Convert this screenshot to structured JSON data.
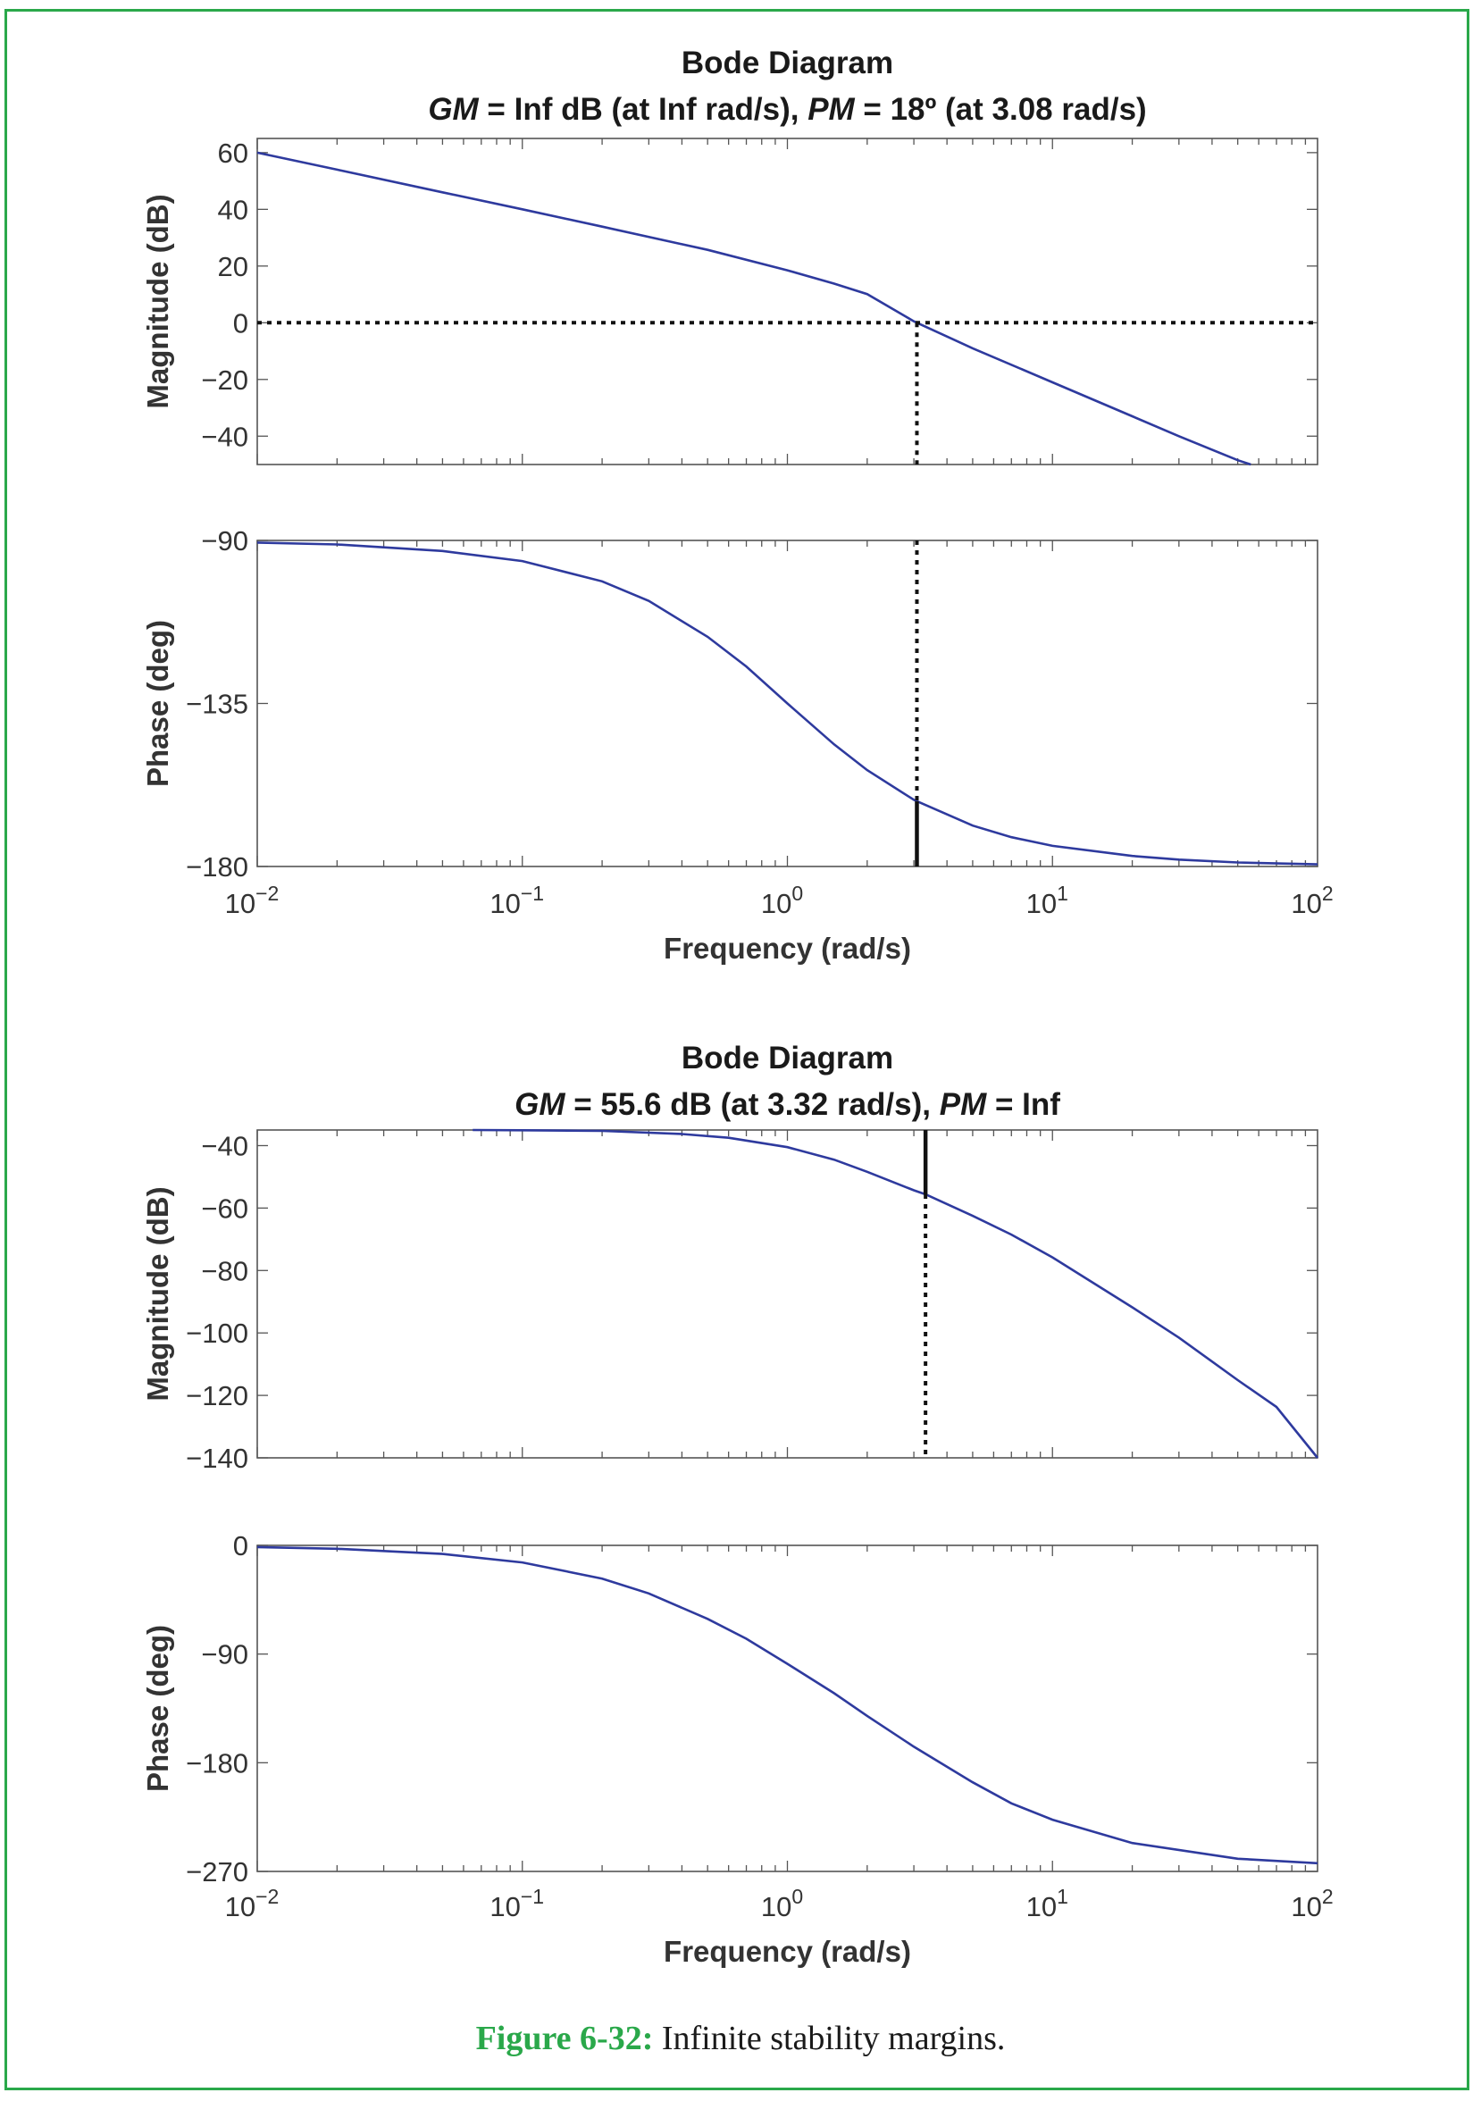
{
  "chart_data": [
    {
      "type": "line",
      "title": "Bode Diagram",
      "subtitle_parts": [
        "GM",
        " = Inf dB (at Inf rad/s), ",
        "PM",
        " = 18º (at 3.08 rad/s)"
      ],
      "xlabel": "Frequency (rad/s)",
      "x_scale": "log",
      "xlim": [
        0.01,
        100
      ],
      "x_tick_labels": [
        "10",
        "10",
        "10",
        "10",
        "10"
      ],
      "x_tick_exponents": [
        "−2",
        "−1",
        "0",
        "1",
        "2"
      ],
      "magnitude": {
        "ylabel": "Magnitude (dB)",
        "ylim": [
          -50,
          65
        ],
        "yticks": [
          60,
          40,
          20,
          0,
          -20,
          -40
        ],
        "ytick_labels": [
          "60",
          "40",
          "20",
          "0",
          "−20",
          "−40"
        ],
        "series": [
          {
            "x": [
              0.01,
              0.02,
              0.05,
              0.1,
              0.2,
              0.5,
              1,
              1.5,
              2,
              3,
              3.08,
              5,
              10,
              20,
              30,
              50,
              56
            ],
            "y": [
              60,
              54,
              46,
              40,
              33.9,
              25.7,
              18.5,
              13.8,
              10.1,
              0.5,
              0,
              -9,
              -21,
              -33,
              -40,
              -48.5,
              -50
            ]
          }
        ],
        "reference_line_y": 0,
        "margin_marker_x": 3.08
      },
      "phase": {
        "ylabel": "Phase (deg)",
        "ylim": [
          -180,
          -90
        ],
        "yticks": [
          -90,
          -135,
          -180
        ],
        "ytick_labels": [
          "−90",
          "−135",
          "−180"
        ],
        "series": [
          {
            "x": [
              0.01,
              0.02,
              0.05,
              0.1,
              0.2,
              0.3,
              0.5,
              0.7,
              1,
              1.5,
              2,
              3,
              3.08,
              5,
              7,
              10,
              20,
              30,
              50,
              100
            ],
            "y": [
              -90.6,
              -91.1,
              -92.9,
              -95.7,
              -101.3,
              -106.7,
              -116.6,
              -124.8,
              -135,
              -146.3,
              -153.4,
              -161.6,
              -162,
              -168.7,
              -171.9,
              -174.3,
              -177.1,
              -178.1,
              -178.9,
              -179.4
            ]
          }
        ],
        "margin_marker_x": 3.08,
        "margin_marker_phase": -162
      }
    },
    {
      "type": "line",
      "title": "Bode Diagram",
      "subtitle_parts": [
        "GM",
        " = 55.6 dB (at 3.32 rad/s), ",
        "PM",
        " = Inf"
      ],
      "xlabel": "Frequency (rad/s)",
      "x_scale": "log",
      "xlim": [
        0.01,
        100
      ],
      "x_tick_labels": [
        "10",
        "10",
        "10",
        "10",
        "10"
      ],
      "x_tick_exponents": [
        "−2",
        "−1",
        "0",
        "1",
        "2"
      ],
      "magnitude": {
        "ylabel": "Magnitude (dB)",
        "ylim": [
          -140,
          -35
        ],
        "yticks": [
          -40,
          -60,
          -80,
          -100,
          -120,
          -140
        ],
        "ytick_labels": [
          "−40",
          "−60",
          "−80",
          "−100",
          "−120",
          "−140"
        ],
        "series": [
          {
            "x": [
              0.065,
              0.1,
              0.2,
              0.4,
              0.6,
              1,
              1.5,
              2,
              3,
              3.32,
              5,
              7,
              10,
              20,
              30,
              50,
              70,
              100
            ],
            "y": [
              -35,
              -35.1,
              -35.3,
              -36.3,
              -37.5,
              -40.5,
              -44.5,
              -48.4,
              -54.3,
              -55.6,
              -62.5,
              -68.5,
              -75.8,
              -91.8,
              -101.5,
              -115.1,
              -123.7,
              -140
            ]
          }
        ],
        "margin_marker_x": 3.32,
        "margin_marker_y": -55.6
      },
      "phase": {
        "ylabel": "Phase (deg)",
        "ylim": [
          -270,
          0
        ],
        "yticks": [
          0,
          -90,
          -180,
          -270
        ],
        "ytick_labels": [
          "0",
          "−90",
          "−180",
          "−270"
        ],
        "series": [
          {
            "x": [
              0.01,
              0.02,
              0.05,
              0.1,
              0.2,
              0.3,
              0.5,
              0.7,
              1,
              1.5,
              2,
              3,
              5,
              7,
              10,
              20,
              50,
              100
            ],
            "y": [
              -1.4,
              -2.8,
              -7.1,
              -14.1,
              -27.5,
              -39.8,
              -60.9,
              -77.3,
              -98.1,
              -122.4,
              -141.2,
              -166.7,
              -196.2,
              -213.6,
              -227.2,
              -246.5,
              -259.5,
              -263.2
            ]
          }
        ]
      }
    }
  ],
  "caption": {
    "label": "Figure 6-32:",
    "text": " Infinite stability margins."
  },
  "colors": {
    "curve": "#2e3a9e",
    "frame": "#2aa84a",
    "marker": "#111111"
  }
}
